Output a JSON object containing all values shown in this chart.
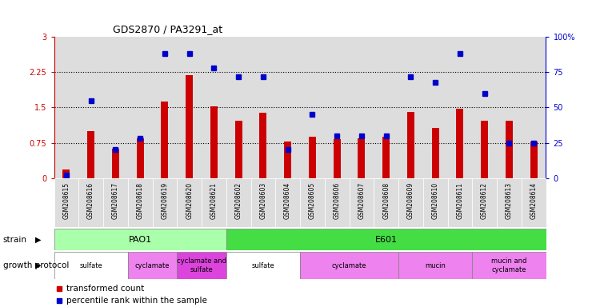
{
  "title": "GDS2870 / PA3291_at",
  "samples": [
    "GSM208615",
    "GSM208616",
    "GSM208617",
    "GSM208618",
    "GSM208619",
    "GSM208620",
    "GSM208621",
    "GSM208602",
    "GSM208603",
    "GSM208604",
    "GSM208605",
    "GSM208606",
    "GSM208607",
    "GSM208608",
    "GSM208609",
    "GSM208610",
    "GSM208611",
    "GSM208612",
    "GSM208613",
    "GSM208614"
  ],
  "transformed_count": [
    0.18,
    1.0,
    0.62,
    0.85,
    1.62,
    2.18,
    1.52,
    1.22,
    1.38,
    0.78,
    0.88,
    0.82,
    0.85,
    0.88,
    1.4,
    1.06,
    1.48,
    1.22,
    1.22,
    0.78
  ],
  "percentile_rank": [
    2,
    55,
    20,
    28,
    88,
    88,
    78,
    72,
    72,
    20,
    45,
    30,
    30,
    30,
    72,
    68,
    88,
    60,
    25,
    25
  ],
  "bar_color": "#cc0000",
  "dot_color": "#0000cc",
  "ylim_left": [
    0,
    3
  ],
  "ylim_right": [
    0,
    100
  ],
  "yticks_left": [
    0,
    0.75,
    1.5,
    2.25,
    3
  ],
  "yticks_right": [
    0,
    25,
    50,
    75,
    100
  ],
  "ytick_labels_left": [
    "0",
    "0.75",
    "1.5",
    "2.25",
    "3"
  ],
  "ytick_labels_right": [
    "0",
    "25",
    "50",
    "75",
    "100%"
  ],
  "hlines": [
    0.75,
    1.5,
    2.25
  ],
  "strain_row": [
    {
      "label": "PAO1",
      "start": 0,
      "end": 7,
      "color": "#aaffaa"
    },
    {
      "label": "E601",
      "start": 7,
      "end": 20,
      "color": "#44dd44"
    }
  ],
  "protocol_row": [
    {
      "label": "sulfate",
      "start": 0,
      "end": 3,
      "color": "#ffffff"
    },
    {
      "label": "cyclamate",
      "start": 3,
      "end": 5,
      "color": "#ee82ee"
    },
    {
      "label": "cyclamate and\nsulfate",
      "start": 5,
      "end": 7,
      "color": "#dd44dd"
    },
    {
      "label": "sulfate",
      "start": 7,
      "end": 10,
      "color": "#ffffff"
    },
    {
      "label": "cyclamate",
      "start": 10,
      "end": 14,
      "color": "#ee82ee"
    },
    {
      "label": "mucin",
      "start": 14,
      "end": 17,
      "color": "#ee82ee"
    },
    {
      "label": "mucin and\ncyclamate",
      "start": 17,
      "end": 20,
      "color": "#ee82ee"
    }
  ],
  "legend_items": [
    {
      "label": "transformed count",
      "color": "#cc0000",
      "marker": "s"
    },
    {
      "label": "percentile rank within the sample",
      "color": "#0000cc",
      "marker": "s"
    }
  ],
  "background_color": "#ffffff",
  "plot_bg_color": "#ffffff",
  "col_bg_color": "#dddddd"
}
